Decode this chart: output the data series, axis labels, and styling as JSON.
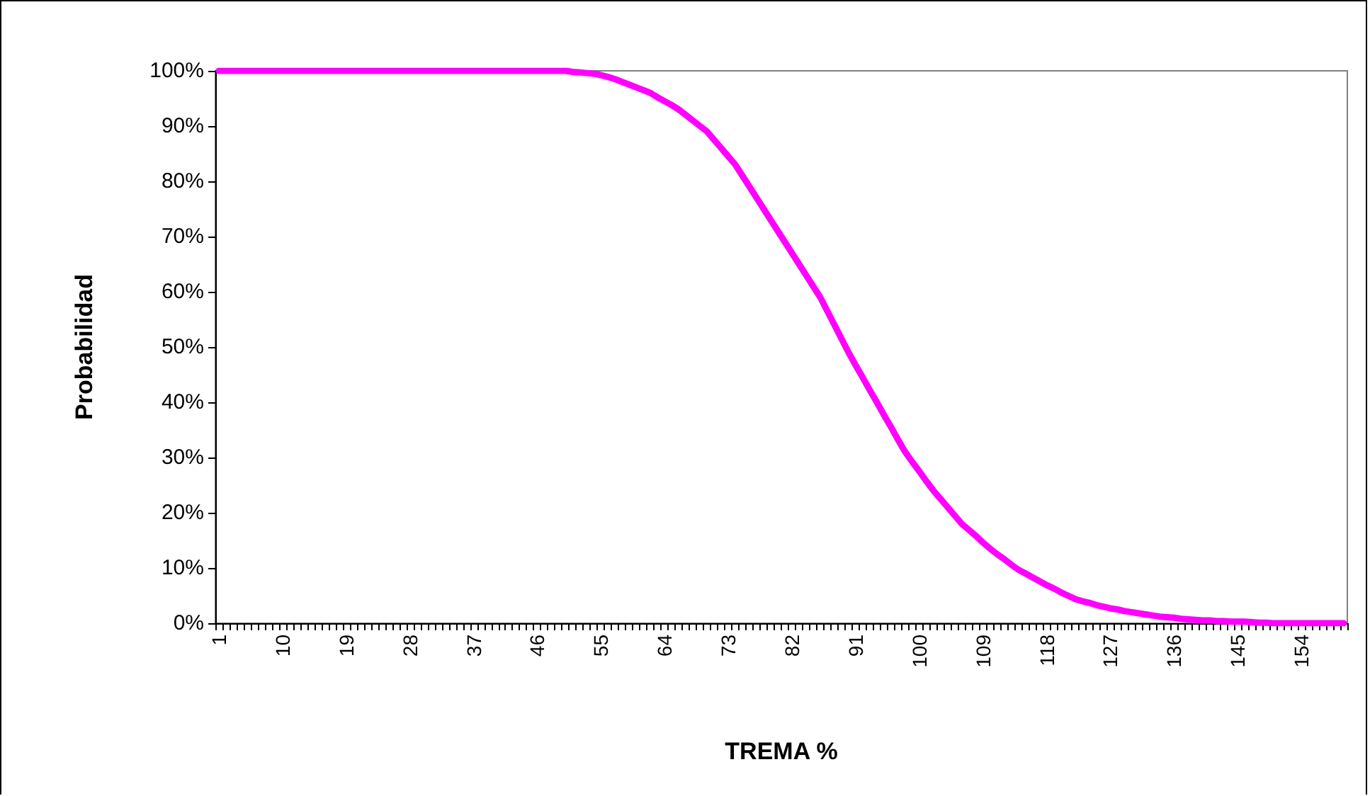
{
  "chart_data": {
    "type": "line",
    "xlabel": "TREMA %",
    "ylabel": "Probabilidad",
    "categories": [
      "1",
      null,
      null,
      null,
      null,
      null,
      null,
      null,
      null,
      "10",
      null,
      null,
      null,
      null,
      null,
      null,
      null,
      null,
      "19",
      null,
      null,
      null,
      null,
      null,
      null,
      null,
      null,
      "28",
      null,
      null,
      null,
      null,
      null,
      null,
      null,
      null,
      "37",
      null,
      null,
      null,
      null,
      null,
      null,
      null,
      null,
      "46",
      null,
      null,
      null,
      null,
      null,
      null,
      null,
      null,
      "55",
      null,
      null,
      null,
      null,
      null,
      null,
      null,
      null,
      "64",
      null,
      null,
      null,
      null,
      null,
      null,
      null,
      null,
      "73",
      null,
      null,
      null,
      null,
      null,
      null,
      null,
      null,
      "82",
      null,
      null,
      null,
      null,
      null,
      null,
      null,
      null,
      "91",
      null,
      null,
      null,
      null,
      null,
      null,
      null,
      null,
      "100",
      null,
      null,
      null,
      null,
      null,
      null,
      null,
      null,
      "109",
      null,
      null,
      null,
      null,
      null,
      null,
      null,
      null,
      "118",
      null,
      null,
      null,
      null,
      null,
      null,
      null,
      null,
      "127",
      null,
      null,
      null,
      null,
      null,
      null,
      null,
      null,
      "136",
      null,
      null,
      null,
      null,
      null,
      null,
      null,
      null,
      "145",
      null,
      null,
      null,
      null,
      null,
      null,
      null,
      null,
      "154",
      null,
      null,
      null,
      null,
      null,
      null
    ],
    "series": [
      {
        "color": "#ff00ff",
        "values": [
          100,
          100,
          100,
          100,
          100,
          100,
          100,
          100,
          100,
          100,
          100,
          100,
          100,
          100,
          100,
          100,
          100,
          100,
          100,
          100,
          100,
          100,
          100,
          100,
          100,
          100,
          100,
          100,
          100,
          100,
          100,
          100,
          100,
          100,
          100,
          100,
          100,
          100,
          100,
          100,
          100,
          100,
          100,
          100,
          100,
          100,
          100,
          100,
          100,
          100,
          99.8,
          99.7,
          99.6,
          99.5,
          99.2,
          98.9,
          98.5,
          98,
          97.5,
          97,
          96.5,
          96,
          95.2,
          94.5,
          93.8,
          93,
          92,
          91,
          90,
          89,
          87.5,
          86,
          84.5,
          83,
          81,
          79,
          77,
          75,
          73,
          71,
          69,
          67,
          65,
          63,
          61,
          59,
          56.5,
          54,
          51.5,
          49,
          46.7,
          44.5,
          42.2,
          40,
          37.7,
          35.5,
          33.2,
          31,
          29.2,
          27.5,
          25.7,
          24,
          22.5,
          21,
          19.5,
          18,
          16.9,
          15.8,
          14.6,
          13.5,
          12.5,
          11.6,
          10.6,
          9.7,
          9,
          8.3,
          7.6,
          6.9,
          6.3,
          5.6,
          5,
          4.4,
          4,
          3.7,
          3.3,
          3,
          2.7,
          2.5,
          2.2,
          2,
          1.8,
          1.6,
          1.4,
          1.2,
          1.1,
          1,
          0.8,
          0.7,
          0.6,
          0.5,
          0.5,
          0.4,
          0.4,
          0.3,
          0.3,
          0.3,
          0.2,
          0.1,
          0.1,
          0,
          0,
          0,
          0,
          0,
          0,
          0,
          0,
          0,
          0,
          0
        ]
      }
    ],
    "ylim": [
      0,
      100
    ],
    "yticks": [
      {
        "value": 0,
        "label": "0%"
      },
      {
        "value": 10,
        "label": "10%"
      },
      {
        "value": 20,
        "label": "20%"
      },
      {
        "value": 30,
        "label": "30%"
      },
      {
        "value": 40,
        "label": "40%"
      },
      {
        "value": 50,
        "label": "50%"
      },
      {
        "value": 60,
        "label": "60%"
      },
      {
        "value": 70,
        "label": "70%"
      },
      {
        "value": 80,
        "label": "80%"
      },
      {
        "value": 90,
        "label": "90%"
      },
      {
        "value": 100,
        "label": "100%"
      }
    ],
    "grid": false,
    "marker": "none",
    "line_style": "solid"
  }
}
